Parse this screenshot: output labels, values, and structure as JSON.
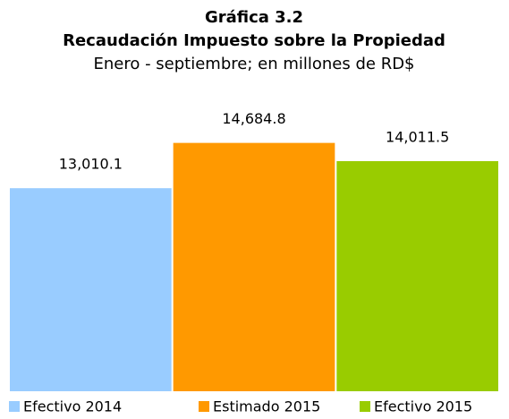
{
  "chart_data": {
    "type": "bar",
    "title": "Gráfica 3.2",
    "subtitle": "Recaudación Impuesto sobre la Propiedad",
    "note": "Enero - septiembre; en millones de RD$",
    "series": [
      {
        "name": "Efectivo 2014",
        "color": "#99ccff",
        "values": [
          13010.1
        ],
        "value_labels": [
          "13,010.1"
        ]
      },
      {
        "name": "Estimado 2015",
        "color": "#ff9900",
        "values": [
          14684.8
        ],
        "value_labels": [
          "14,684.8"
        ]
      },
      {
        "name": "Efectivo 2015",
        "color": "#99cc00",
        "values": [
          14011.5
        ],
        "value_labels": [
          "14,011.5"
        ]
      }
    ],
    "ylim": [
      5500,
      15500
    ]
  }
}
